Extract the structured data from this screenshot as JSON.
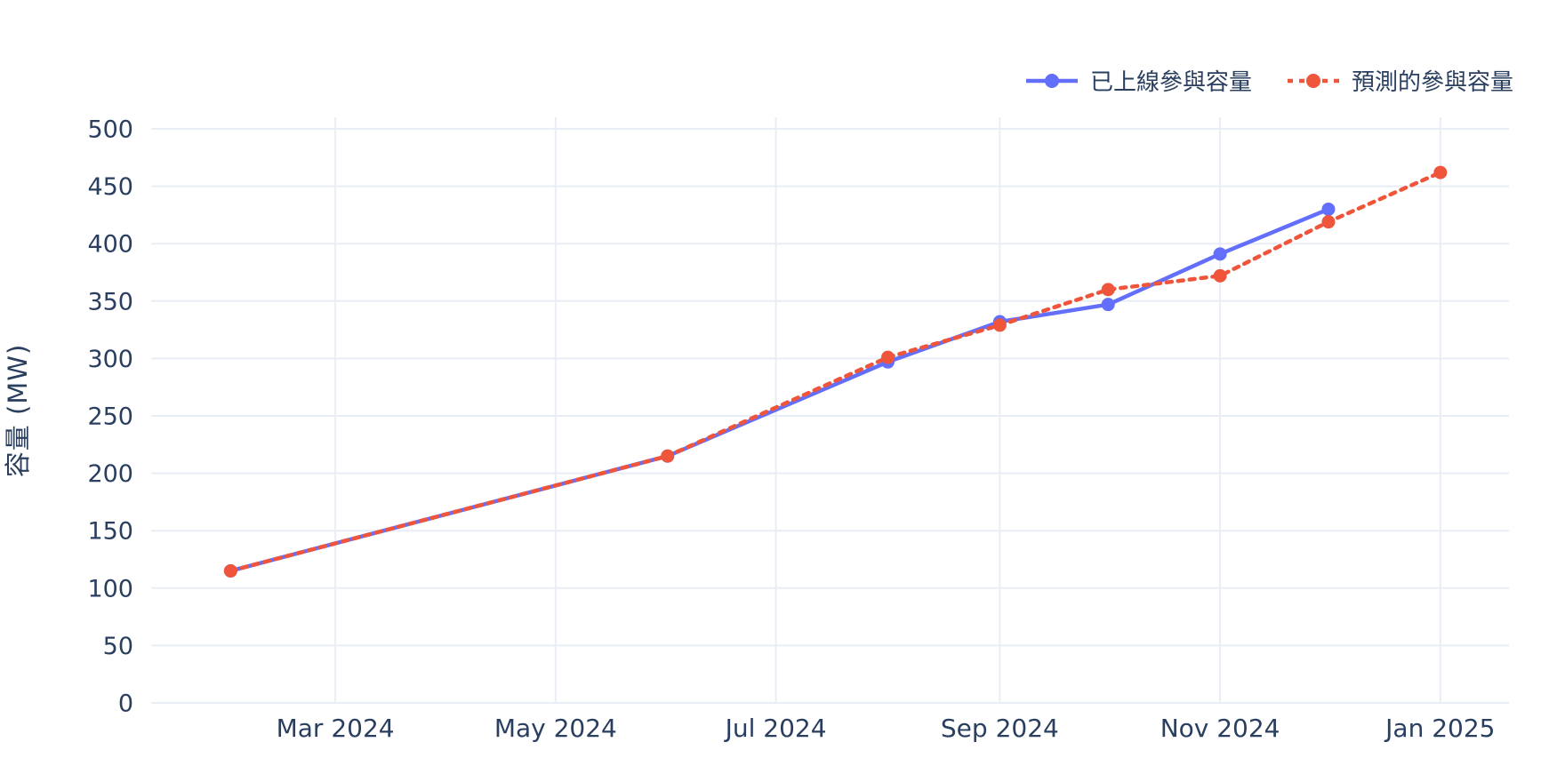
{
  "chart_data": {
    "type": "line",
    "title": "",
    "xlabel": "",
    "ylabel": "容量 (MW)",
    "ylim": [
      0,
      500
    ],
    "grid": true,
    "legend_position": "top-right",
    "x": [
      "2024-02-01",
      "2024-06-01",
      "2024-08-01",
      "2024-09-01",
      "2024-10-01",
      "2024-11-01",
      "2024-12-01",
      "2025-01-01"
    ],
    "x_range": [
      "2024-01-10",
      "2025-01-20"
    ],
    "series": [
      {
        "name": "已上線參與容量",
        "color": "#636EFA",
        "line_style": "solid",
        "marker": "circle",
        "values": [
          115,
          215,
          297,
          332,
          347,
          391,
          430,
          null
        ]
      },
      {
        "name": "預測的參與容量",
        "color": "#EF553B",
        "line_style": "dotted",
        "marker": "circle",
        "values": [
          115,
          215,
          301,
          329,
          360,
          372,
          419,
          462
        ]
      }
    ],
    "x_ticks": [
      {
        "date": "2024-03-01",
        "label": "Mar 2024"
      },
      {
        "date": "2024-05-01",
        "label": "May 2024"
      },
      {
        "date": "2024-07-01",
        "label": "Jul 2024"
      },
      {
        "date": "2024-09-01",
        "label": "Sep 2024"
      },
      {
        "date": "2024-11-01",
        "label": "Nov 2024"
      },
      {
        "date": "2025-01-01",
        "label": "Jan 2025"
      }
    ],
    "y_ticks": [
      0,
      50,
      100,
      150,
      200,
      250,
      300,
      350,
      400,
      450,
      500
    ]
  },
  "style": {
    "text_color": "#2a3f5f",
    "grid_color": "#e9eef6",
    "background": "#ffffff",
    "actual_color": "#636EFA",
    "forecast_color": "#EF553B"
  }
}
